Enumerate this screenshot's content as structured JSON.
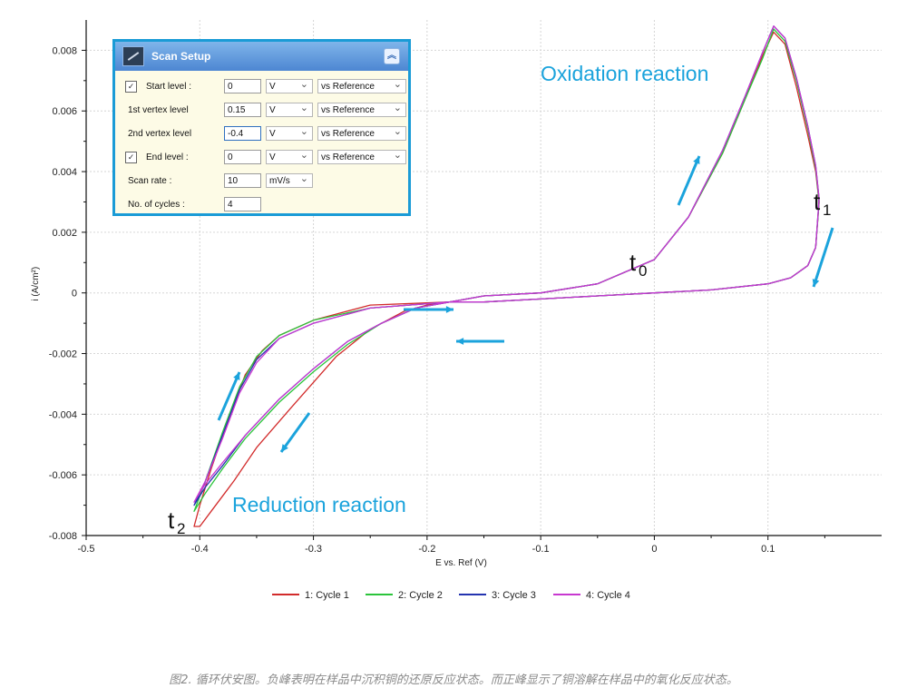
{
  "chart_data": {
    "type": "line",
    "title": "",
    "xlabel": "E vs. Ref (V)",
    "ylabel": "i (A/cm²)",
    "xlim": [
      -0.5,
      0.2
    ],
    "ylim": [
      -0.008,
      0.009
    ],
    "x_ticks": [
      -0.5,
      -0.4,
      -0.3,
      -0.2,
      -0.1,
      0,
      0.1
    ],
    "x_tick_labels": [
      "-0.5",
      "-0.4",
      "-0.3",
      "-0.2",
      "-0.1",
      "0",
      "0.1"
    ],
    "y_ticks": [
      -0.008,
      -0.006,
      -0.004,
      -0.002,
      0,
      0.002,
      0.004,
      0.006,
      0.008
    ],
    "y_tick_labels": [
      "-0.008",
      "-0.006",
      "-0.004",
      "-0.002",
      "0",
      "0.002",
      "0.004",
      "0.006",
      "0.008"
    ],
    "grid": true,
    "legend_position": "bottom",
    "series": [
      {
        "name": "1: Cycle 1",
        "color": "#d22b2b",
        "x": [
          -0.18,
          -0.25,
          -0.3,
          -0.33,
          -0.345,
          -0.36,
          -0.375,
          -0.39,
          -0.4,
          -0.405,
          -0.4,
          -0.39,
          -0.37,
          -0.35,
          -0.32,
          -0.28,
          -0.25,
          -0.22,
          -0.2,
          -0.18,
          -0.15,
          -0.1,
          -0.05,
          0.0,
          0.03,
          0.06,
          0.08,
          0.095,
          0.105,
          0.115,
          0.125,
          0.135,
          0.142,
          0.145,
          0.142,
          0.135,
          0.12,
          0.1,
          0.05,
          0.0,
          -0.05,
          -0.1,
          -0.15,
          -0.18
        ],
        "y": [
          -0.0003,
          -0.0004,
          -0.0009,
          -0.0014,
          -0.0019,
          -0.0027,
          -0.0042,
          -0.0058,
          -0.007,
          -0.0077,
          -0.0077,
          -0.0072,
          -0.0062,
          -0.0051,
          -0.0038,
          -0.0021,
          -0.0012,
          -0.0006,
          -0.0004,
          -0.0003,
          -0.0001,
          0.0,
          0.0003,
          0.0011,
          0.0025,
          0.0046,
          0.0064,
          0.0078,
          0.0086,
          0.0082,
          0.0068,
          0.0052,
          0.004,
          0.003,
          0.0015,
          0.0009,
          0.0005,
          0.0003,
          0.0001,
          0.0,
          -0.0001,
          -0.0002,
          -0.0003,
          -0.0003
        ]
      },
      {
        "name": "2: Cycle 2",
        "color": "#2bc43b",
        "x": [
          -0.18,
          -0.25,
          -0.3,
          -0.33,
          -0.35,
          -0.365,
          -0.38,
          -0.395,
          -0.405,
          -0.395,
          -0.38,
          -0.36,
          -0.33,
          -0.3,
          -0.27,
          -0.24,
          -0.21,
          -0.18,
          -0.15,
          -0.1,
          -0.05,
          0.0,
          0.03,
          0.06,
          0.08,
          0.095,
          0.105,
          0.115,
          0.125,
          0.135,
          0.142,
          0.145,
          0.142,
          0.135,
          0.12,
          0.1,
          0.05,
          0.0,
          -0.05,
          -0.1,
          -0.15,
          -0.18
        ],
        "y": [
          -0.0003,
          -0.0005,
          -0.0009,
          -0.0014,
          -0.0021,
          -0.0031,
          -0.0046,
          -0.0062,
          -0.0072,
          -0.0066,
          -0.0058,
          -0.0048,
          -0.0036,
          -0.0026,
          -0.0017,
          -0.001,
          -0.0005,
          -0.0003,
          -0.0001,
          0.0,
          0.0003,
          0.0011,
          0.0025,
          0.0046,
          0.0064,
          0.0077,
          0.0087,
          0.0083,
          0.007,
          0.0054,
          0.0041,
          0.003,
          0.0015,
          0.0009,
          0.0005,
          0.0003,
          0.0001,
          0.0,
          -0.0001,
          -0.0002,
          -0.0003,
          -0.0003
        ]
      },
      {
        "name": "3: Cycle 3",
        "color": "#2434b0",
        "x": [
          -0.18,
          -0.25,
          -0.3,
          -0.33,
          -0.35,
          -0.365,
          -0.38,
          -0.395,
          -0.405,
          -0.395,
          -0.38,
          -0.36,
          -0.33,
          -0.3,
          -0.27,
          -0.24,
          -0.21,
          -0.18,
          -0.15,
          -0.1,
          -0.05,
          0.0,
          0.03,
          0.06,
          0.08,
          0.095,
          0.105,
          0.115,
          0.125,
          0.135,
          0.142,
          0.145,
          0.142,
          0.135,
          0.12,
          0.1,
          0.05,
          0.0,
          -0.05,
          -0.1,
          -0.15,
          -0.18
        ],
        "y": [
          -0.0003,
          -0.0005,
          -0.001,
          -0.0015,
          -0.0022,
          -0.0032,
          -0.0047,
          -0.0062,
          -0.007,
          -0.0064,
          -0.0057,
          -0.0047,
          -0.0035,
          -0.0025,
          -0.0016,
          -0.001,
          -0.0005,
          -0.0003,
          -0.0001,
          0.0,
          0.0003,
          0.0011,
          0.0025,
          0.0047,
          0.0065,
          0.0079,
          0.0088,
          0.0084,
          0.0071,
          0.0055,
          0.0042,
          0.0031,
          0.0015,
          0.0009,
          0.0005,
          0.0003,
          0.0001,
          0.0,
          -0.0001,
          -0.0002,
          -0.0003,
          -0.0003
        ]
      },
      {
        "name": "4: Cycle 4",
        "color": "#c838d0",
        "x": [
          -0.18,
          -0.25,
          -0.3,
          -0.33,
          -0.35,
          -0.365,
          -0.38,
          -0.395,
          -0.405,
          -0.395,
          -0.38,
          -0.36,
          -0.33,
          -0.3,
          -0.27,
          -0.24,
          -0.21,
          -0.18,
          -0.15,
          -0.1,
          -0.05,
          0.0,
          0.03,
          0.06,
          0.08,
          0.095,
          0.105,
          0.115,
          0.125,
          0.135,
          0.142,
          0.145,
          0.142,
          0.135,
          0.12,
          0.1,
          0.05,
          0.0,
          -0.05,
          -0.1,
          -0.15,
          -0.18
        ],
        "y": [
          -0.0003,
          -0.0005,
          -0.001,
          -0.0015,
          -0.0023,
          -0.0033,
          -0.0048,
          -0.0062,
          -0.0069,
          -0.0063,
          -0.0056,
          -0.0047,
          -0.0035,
          -0.0025,
          -0.0016,
          -0.001,
          -0.0005,
          -0.0003,
          -0.0001,
          0.0,
          0.0003,
          0.0011,
          0.0025,
          0.0047,
          0.0065,
          0.0079,
          0.0088,
          0.0084,
          0.0071,
          0.0055,
          0.0042,
          0.0031,
          0.0015,
          0.0009,
          0.0005,
          0.0003,
          0.0001,
          0.0,
          -0.0001,
          -0.0002,
          -0.0003,
          -0.0003
        ]
      }
    ],
    "annotations": {
      "oxidation": "Oxidation reaction",
      "reduction": "Reduction reaction",
      "t0": "t",
      "t0_sub": "0",
      "t1": "t",
      "t1_sub": "1",
      "t2": "t",
      "t2_sub": "2"
    }
  },
  "scan_setup": {
    "title": "Scan Setup",
    "collapse_icon": "chevron-double-up-icon",
    "rows": [
      {
        "label": "Start level :",
        "checked": true,
        "check_mark": "✓",
        "value": "0",
        "unit": "V",
        "ref": "vs Reference"
      },
      {
        "label": "1st vertex level",
        "value": "0.15",
        "unit": "V",
        "ref": "vs Reference"
      },
      {
        "label": "2nd vertex level",
        "value": "-0.4",
        "unit": "V",
        "ref": "vs Reference"
      },
      {
        "label": "End level :",
        "checked": true,
        "check_mark": "✓",
        "value": "0",
        "unit": "V",
        "ref": "vs Reference"
      },
      {
        "label": "Scan rate :",
        "value": "10",
        "unit": "mV/s"
      },
      {
        "label": "No. of cycles :",
        "value": "4"
      }
    ]
  },
  "caption": "图2. 循环伏安图。负峰表明在样品中沉积铜的还原反应状态。而正峰显示了铜溶解在样品中的氧化反应状态。",
  "colors": {
    "accent": "#1ba3dc",
    "panel_border": "#1a9bd6"
  }
}
